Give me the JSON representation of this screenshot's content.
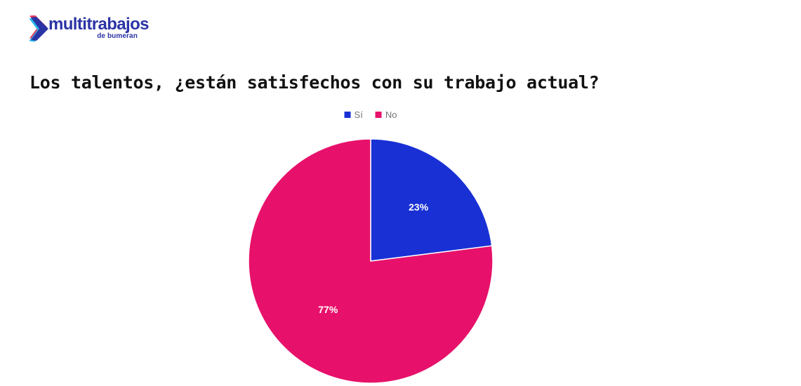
{
  "logo": {
    "brand": "multitrabajos",
    "sub_brand": "de bumeran",
    "brand_color": "#2b34a5",
    "icon_colors": {
      "pink": "#e63a5f",
      "cyan": "#27b6e9",
      "blue": "#2b34a5"
    }
  },
  "title": "Los talentos, ¿están satisfechos con su trabajo actual?",
  "chart_data": {
    "type": "pie",
    "title": "Los talentos, ¿están satisfechos con su trabajo actual?",
    "labels": [
      "Sí",
      "No"
    ],
    "values": [
      23,
      77
    ],
    "data_labels": [
      "23%",
      "77%"
    ],
    "colors": [
      "#1830d4",
      "#e7116b"
    ],
    "slice_border_color": "#ffffff",
    "label_text_color": "#ffffff",
    "legend_position": "top",
    "legend_text_color": "#757575",
    "start_angle_deg": 0,
    "direction": "clockwise"
  }
}
